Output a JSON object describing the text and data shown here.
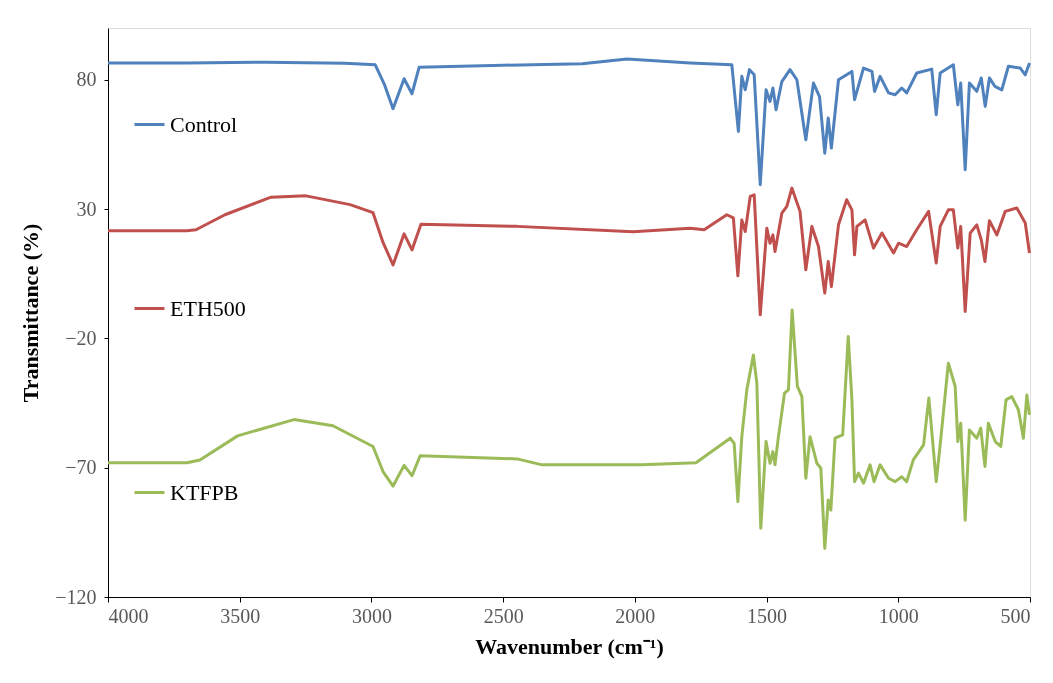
{
  "chart_data": {
    "type": "line",
    "xlabel": "Wavenumber (cm⁻¹)",
    "ylabel": "Transmittance (%)",
    "xlim": [
      4000,
      500
    ],
    "xticks": [
      4000,
      3500,
      3000,
      2500,
      2000,
      1500,
      1000,
      500
    ],
    "ylim": [
      -120,
      100
    ],
    "yticks": [
      -120,
      -70,
      -20,
      30,
      80
    ],
    "grid": false,
    "legend": "left",
    "marker": "none",
    "line_style": "solid",
    "series": [
      {
        "name": "Control",
        "color": "#4f81bd",
        "x": [
          4000,
          3700,
          3400,
          3100,
          2986,
          2950,
          2918,
          2876,
          2846,
          2819,
          2500,
          2200,
          2030,
          1790,
          1632,
          1607,
          1594,
          1581,
          1565,
          1547,
          1524,
          1502,
          1487,
          1476,
          1464,
          1442,
          1411,
          1385,
          1351,
          1322,
          1299,
          1279,
          1266,
          1254,
          1227,
          1176,
          1166,
          1132,
          1100,
          1090,
          1069,
          1037,
          1012,
          987,
          968,
          930,
          873,
          856,
          841,
          791,
          774,
          763,
          746,
          730,
          702,
          685,
          670,
          654,
          633,
          607,
          582,
          537,
          518,
          502
        ],
        "values": [
          86.5,
          86.5,
          86.8,
          86.4,
          85.8,
          78,
          68.8,
          80.4,
          74.6,
          84.8,
          85.6,
          86.2,
          88,
          86.5,
          85.8,
          60.0,
          81.3,
          76.1,
          83.9,
          81.9,
          39.4,
          76.1,
          71.6,
          76.8,
          68.4,
          79.3,
          83.9,
          80.0,
          56.8,
          78.7,
          73.5,
          51.6,
          65.2,
          53.6,
          80.0,
          83.2,
          72.3,
          84.5,
          83.2,
          75.5,
          81.3,
          74.9,
          74.2,
          76.8,
          74.9,
          82.6,
          84.1,
          66.5,
          82.6,
          85.8,
          70.3,
          78.7,
          45.2,
          78.7,
          75.5,
          80.7,
          69.7,
          80.7,
          77.4,
          76.1,
          85.2,
          84.5,
          81.9,
          86.5
        ]
      },
      {
        "name": "ETH500",
        "color": "#c0504d",
        "x": [
          4000,
          3700,
          3666,
          3556,
          3381,
          3248,
          3081,
          2994,
          2956,
          2918,
          2876,
          2846,
          2812,
          2447,
          2007,
          1790,
          1737,
          1651,
          1626,
          1609,
          1594,
          1581,
          1562,
          1547,
          1524,
          1499,
          1487,
          1476,
          1468,
          1442,
          1423,
          1404,
          1373,
          1351,
          1328,
          1303,
          1279,
          1266,
          1254,
          1227,
          1196,
          1176,
          1166,
          1157,
          1126,
          1094,
          1062,
          1018,
          999,
          968,
          930,
          885,
          856,
          841,
          810,
          791,
          774,
          763,
          746,
          727,
          702,
          685,
          671,
          654,
          626,
          594,
          550,
          518,
          502
        ],
        "values": [
          21.6,
          21.6,
          22.0,
          27.8,
          34.6,
          35.1,
          31.7,
          28.6,
          17.1,
          8.4,
          20.4,
          14.2,
          24.1,
          23.3,
          21.2,
          22.6,
          22.0,
          27.8,
          26.6,
          4.2,
          25.8,
          21.3,
          34.9,
          35.5,
          -10.9,
          22.6,
          16.8,
          20.0,
          13.6,
          28.4,
          31.0,
          38.1,
          29.1,
          6.5,
          23.3,
          15.5,
          -2.5,
          9.7,
          0.0,
          23.9,
          33.6,
          29.7,
          12.3,
          23.3,
          25.8,
          14.9,
          20.7,
          13.0,
          16.8,
          15.5,
          22.0,
          29.1,
          9.1,
          23.3,
          29.7,
          29.7,
          14.9,
          23.3,
          -9.6,
          20.7,
          23.9,
          18.1,
          9.7,
          25.5,
          20.0,
          29.1,
          30.4,
          24.6,
          13.0
        ]
      },
      {
        "name": "KTFPB",
        "color": "#9bbb59",
        "x": [
          4000,
          3700,
          3651,
          3508,
          3294,
          3146,
          2994,
          2956,
          2918,
          2876,
          2846,
          2815,
          2447,
          2352,
          2147,
          1973,
          1768,
          1638,
          1623,
          1609,
          1594,
          1575,
          1550,
          1537,
          1522,
          1502,
          1487,
          1476,
          1468,
          1455,
          1432,
          1417,
          1403,
          1383,
          1366,
          1351,
          1335,
          1309,
          1294,
          1279,
          1266,
          1256,
          1240,
          1211,
          1190,
          1176,
          1166,
          1151,
          1132,
          1107,
          1092,
          1069,
          1037,
          1012,
          987,
          968,
          943,
          904,
          884,
          856,
          841,
          810,
          784,
          774,
          763,
          746,
          730,
          702,
          687,
          671,
          658,
          632,
          611,
          591,
          569,
          544,
          525,
          512,
          502
        ],
        "values": [
          -68.1,
          -68.1,
          -67.0,
          -57.7,
          -51.4,
          -53.8,
          -61.8,
          -71.5,
          -77.1,
          -69.1,
          -73.1,
          -65.4,
          -66.6,
          -68.9,
          -68.9,
          -68.9,
          -68.1,
          -58.6,
          -60.6,
          -83.1,
          -58.0,
          -39.9,
          -26.4,
          -37.3,
          -93.4,
          -59.9,
          -68.3,
          -63.8,
          -68.9,
          -58.0,
          -41.2,
          -39.9,
          -9.0,
          -38.6,
          -42.5,
          -74.1,
          -58.0,
          -68.3,
          -70.2,
          -101.2,
          -82.5,
          -86.4,
          -58.6,
          -57.3,
          -19.3,
          -43.8,
          -75.4,
          -72.1,
          -76.0,
          -68.9,
          -75.4,
          -68.9,
          -74.1,
          -75.4,
          -73.5,
          -75.4,
          -67.0,
          -61.2,
          -43.1,
          -75.4,
          -61.2,
          -29.6,
          -38.6,
          -59.9,
          -52.8,
          -90.3,
          -55.4,
          -58.6,
          -54.7,
          -69.5,
          -52.8,
          -59.9,
          -61.8,
          -43.8,
          -42.5,
          -47.6,
          -58.6,
          -41.9,
          -49.6
        ]
      }
    ]
  }
}
